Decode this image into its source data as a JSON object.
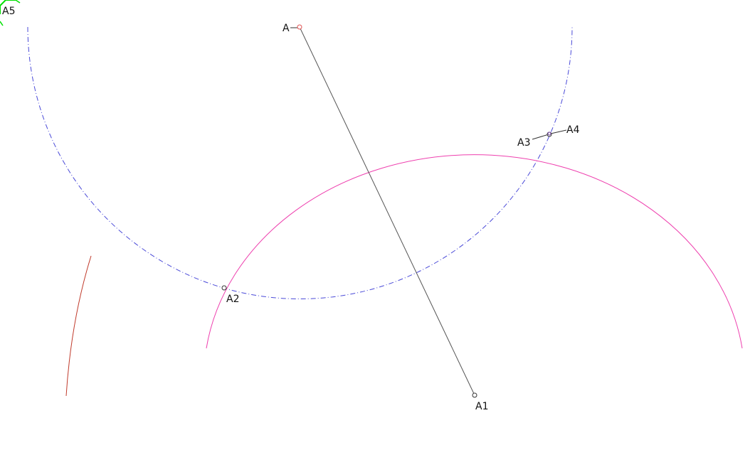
{
  "diagram": {
    "points": {
      "A": "A",
      "A1": "A1",
      "A2": "A2",
      "A3": "A3",
      "A4": "A4",
      "A5": "A5"
    },
    "colors": {
      "segment": "#555555",
      "blue_arc": "#4a4ad8",
      "pink_arc": "#ee3fae",
      "red_arc": "#c03a2b",
      "marker_A": "#e05050",
      "marker_default": "#333333",
      "a5_marker": "#00e000"
    }
  }
}
